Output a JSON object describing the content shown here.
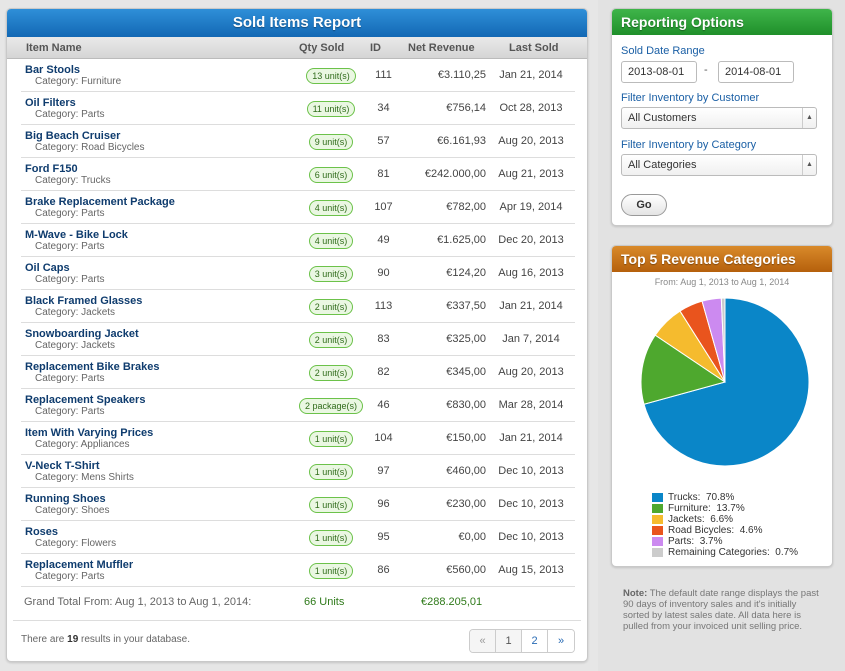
{
  "report": {
    "title": "Sold Items Report",
    "columns": [
      "Item Name",
      "Qty Sold",
      "ID",
      "Net Revenue",
      "Last Sold"
    ],
    "rows": [
      {
        "name": "Bar Stools",
        "category": "Category: Furniture",
        "qty": "13 unit(s)",
        "id": "111",
        "revenue": "€3.110,25",
        "date": "Jan 21, 2014"
      },
      {
        "name": "Oil Filters",
        "category": "Category: Parts",
        "qty": "11 unit(s)",
        "id": "34",
        "revenue": "€756,14",
        "date": "Oct 28, 2013"
      },
      {
        "name": "Big Beach Cruiser",
        "category": "Category: Road Bicycles",
        "qty": "9 unit(s)",
        "id": "57",
        "revenue": "€6.161,93",
        "date": "Aug 20, 2013"
      },
      {
        "name": "Ford F150",
        "category": "Category: Trucks",
        "qty": "6 unit(s)",
        "id": "81",
        "revenue": "€242.000,00",
        "date": "Aug 21, 2013"
      },
      {
        "name": "Brake Replacement Package",
        "category": "Category: Parts",
        "qty": "4 unit(s)",
        "id": "107",
        "revenue": "€782,00",
        "date": "Apr 19, 2014"
      },
      {
        "name": "M-Wave - Bike Lock",
        "category": "Category: Parts",
        "qty": "4 unit(s)",
        "id": "49",
        "revenue": "€1.625,00",
        "date": "Dec 20, 2013"
      },
      {
        "name": "Oil Caps",
        "category": "Category: Parts",
        "qty": "3 unit(s)",
        "id": "90",
        "revenue": "€124,20",
        "date": "Aug 16, 2013"
      },
      {
        "name": "Black Framed Glasses",
        "category": "Category: Jackets",
        "qty": "2 unit(s)",
        "id": "113",
        "revenue": "€337,50",
        "date": "Jan 21, 2014"
      },
      {
        "name": "Snowboarding Jacket",
        "category": "Category: Jackets",
        "qty": "2 unit(s)",
        "id": "83",
        "revenue": "€325,00",
        "date": "Jan 7, 2014"
      },
      {
        "name": "Replacement Bike Brakes",
        "category": "Category: Parts",
        "qty": "2 unit(s)",
        "id": "82",
        "revenue": "€345,00",
        "date": "Aug 20, 2013"
      },
      {
        "name": "Replacement Speakers",
        "category": "Category: Parts",
        "qty": "2 package(s)",
        "id": "46",
        "revenue": "€830,00",
        "date": "Mar 28, 2014"
      },
      {
        "name": "Item With Varying Prices",
        "category": "Category: Appliances",
        "qty": "1 unit(s)",
        "id": "104",
        "revenue": "€150,00",
        "date": "Jan 21, 2014"
      },
      {
        "name": "V-Neck T-Shirt",
        "category": "Category: Mens Shirts",
        "qty": "1 unit(s)",
        "id": "97",
        "revenue": "€460,00",
        "date": "Dec 10, 2013"
      },
      {
        "name": "Running Shoes",
        "category": "Category: Shoes",
        "qty": "1 unit(s)",
        "id": "96",
        "revenue": "€230,00",
        "date": "Dec 10, 2013"
      },
      {
        "name": "Roses",
        "category": "Category: Flowers",
        "qty": "1 unit(s)",
        "id": "95",
        "revenue": "€0,00",
        "date": "Dec 10, 2013"
      },
      {
        "name": "Replacement Muffler",
        "category": "Category: Parts",
        "qty": "1 unit(s)",
        "id": "86",
        "revenue": "€560,00",
        "date": "Aug 15, 2013"
      }
    ],
    "grand_total_label": "Grand Total From: Aug 1, 2013 to Aug 1, 2014:",
    "grand_total_units": "66 Units",
    "grand_total_revenue": "€288.205,01",
    "results_prefix": "There are ",
    "results_count": "19",
    "results_suffix": " results in your database.",
    "pagination": {
      "prev": "«",
      "pages": [
        "1",
        "2"
      ],
      "next": "»",
      "current": "1"
    }
  },
  "options": {
    "title": "Reporting Options",
    "date_range_label": "Sold Date Range",
    "date_from": "2013-08-01",
    "date_separator": "-",
    "date_to": "2014-08-01",
    "customer_label": "Filter Inventory by Customer",
    "customer_selected": "All Customers",
    "category_label": "Filter Inventory by Category",
    "category_selected": "All Categories",
    "go_label": "Go"
  },
  "revenue_chart": {
    "title": "Top 5 Revenue Categories",
    "subtitle": "From: Aug 1, 2013 to Aug 1, 2014"
  },
  "chart_data": {
    "type": "pie",
    "title": "Top 5 Revenue Categories",
    "subtitle": "From: Aug 1, 2013 to Aug 1, 2014",
    "slices": [
      {
        "label": "Trucks:",
        "display": "70.8%",
        "value": 70.8,
        "color": "#0a86c8"
      },
      {
        "label": "Furniture:",
        "display": "13.7%",
        "value": 13.7,
        "color": "#4ea82e"
      },
      {
        "label": "Jackets:",
        "display": "6.6%",
        "value": 6.6,
        "color": "#f5bb2e"
      },
      {
        "label": "Road Bicycles:",
        "display": "4.6%",
        "value": 4.6,
        "color": "#e9541d"
      },
      {
        "label": "Parts:",
        "display": "3.7%",
        "value": 3.7,
        "color": "#cc8af0"
      },
      {
        "label": "Remaining Categories:",
        "display": "0.7%",
        "value": 0.7,
        "color": "#cccccc"
      }
    ],
    "legend_position": "bottom"
  },
  "note": {
    "label": "Note:",
    "text": " The default date range displays the past 90 days of inventory sales and it's initially sorted by latest sales date. All data here is pulled from your invoiced unit selling price."
  }
}
